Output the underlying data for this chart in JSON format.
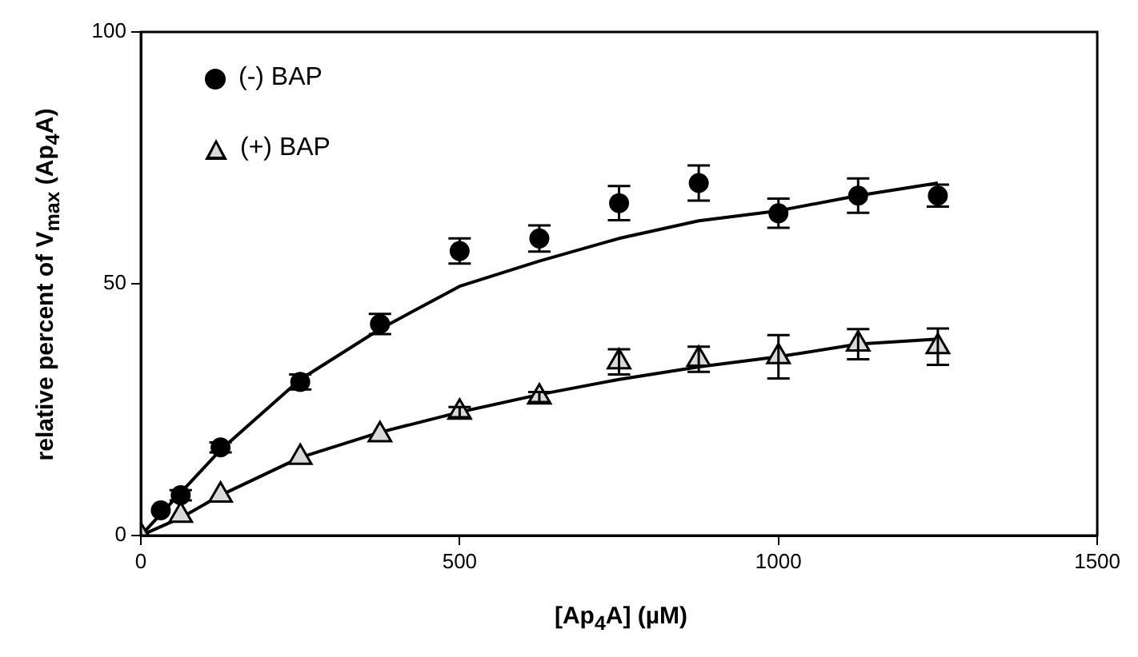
{
  "chart_data": {
    "type": "scatter",
    "xlabel": "[Ap$_{4}$A] (µM)",
    "ylabel": "relative percent of V$_{max}$ (Ap$_{4}$A)",
    "xlim": [
      0,
      1500
    ],
    "xticks": [
      0,
      500,
      1000,
      1500
    ],
    "ylim": [
      0,
      100
    ],
    "yticks": [
      0,
      50,
      100
    ],
    "grid": false,
    "legend": "top left",
    "series": [
      {
        "name": "(-) BAP",
        "type": "scatter",
        "marker": "circle",
        "color": "#000000",
        "x": [
          31.25,
          62.5,
          125,
          250,
          375,
          500,
          625,
          750,
          875,
          1000,
          1125,
          1250
        ],
        "values": [
          5,
          8,
          17.5,
          30.5,
          42,
          56.5,
          59,
          66,
          70,
          64,
          67.5,
          67.5
        ],
        "errors": [
          null,
          1,
          1,
          1.5,
          2,
          2.5,
          2.6,
          3.4,
          3.5,
          2.9,
          3.4,
          2.2
        ]
      },
      {
        "name": "(+) BAP",
        "type": "scatter",
        "marker": "triangle",
        "color": "#d9d9d9",
        "x": [
          0,
          62.5,
          125,
          250,
          375,
          500,
          625,
          750,
          875,
          1000,
          1125,
          1250
        ],
        "values": [
          0,
          4,
          8,
          15.5,
          20,
          24.5,
          27.5,
          34.5,
          35,
          35.5,
          38,
          37.5
        ],
        "errors": [
          null,
          null,
          null,
          null,
          null,
          1,
          1,
          2.5,
          2.5,
          4.3,
          3,
          3.6
        ]
      },
      {
        "type": "line",
        "marker": "none",
        "line_style": "solid",
        "color": "#000000",
        "x": [
          0,
          62.5,
          125,
          250,
          375,
          500,
          625,
          750,
          875,
          1000,
          1125,
          1250
        ],
        "values": [
          0,
          8.5,
          17,
          31,
          41,
          49.5,
          54.5,
          59,
          62.5,
          64.5,
          67.5,
          70
        ]
      },
      {
        "type": "line",
        "marker": "none",
        "line_style": "solid",
        "color": "#000000",
        "x": [
          0,
          62.5,
          125,
          250,
          375,
          500,
          625,
          750,
          875,
          1000,
          1125,
          1250
        ],
        "values": [
          0,
          3.5,
          8,
          15.5,
          20.5,
          24.5,
          28,
          31,
          33.5,
          35.5,
          38,
          39
        ]
      }
    ]
  }
}
